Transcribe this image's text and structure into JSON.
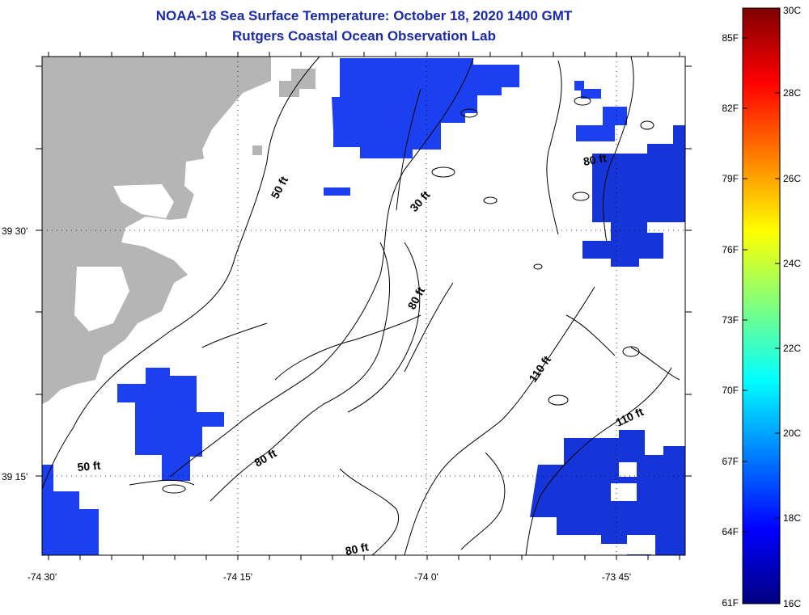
{
  "title": "NOAA-18 Sea Surface Temperature:  October 18, 2020 1400 GMT",
  "subtitle": "Rutgers Coastal Ocean Observation Lab",
  "x_ticks": [
    "-74 30'",
    "-74 15'",
    "-74 0'",
    "-73 45'"
  ],
  "y_ticks": [
    "39 30'",
    "39 15'"
  ],
  "contour_labels": [
    {
      "text": "50 ft",
      "rotate": -62
    },
    {
      "text": "30 ft",
      "rotate": -48
    },
    {
      "text": "80 ft",
      "rotate": -10
    },
    {
      "text": "80 ft",
      "rotate": -62
    },
    {
      "text": "110 ft",
      "rotate": -55
    },
    {
      "text": "110 ft",
      "rotate": -25
    },
    {
      "text": "50 ft",
      "rotate": -5
    },
    {
      "text": "80 ft",
      "rotate": -30
    },
    {
      "text": "80 ft",
      "rotate": -12
    }
  ],
  "colorbar": {
    "fahrenheit": [
      "85F",
      "82F",
      "79F",
      "76F",
      "73F",
      "70F",
      "67F",
      "64F",
      "61F"
    ],
    "celsius": [
      "30C",
      "28C",
      "26C",
      "24C",
      "22C",
      "20C",
      "18C",
      "16C"
    ],
    "gradient": [
      "#00007f",
      "#0000ff",
      "#007fff",
      "#00ffff",
      "#7fff7f",
      "#ffff00",
      "#ff7f00",
      "#ff0000",
      "#7f0000"
    ]
  },
  "colors": {
    "land": "#b5b5b5",
    "sst_patch": "#1a40f0",
    "sst_patch_dark": "#1535d8",
    "title": "#1a2aa8"
  }
}
